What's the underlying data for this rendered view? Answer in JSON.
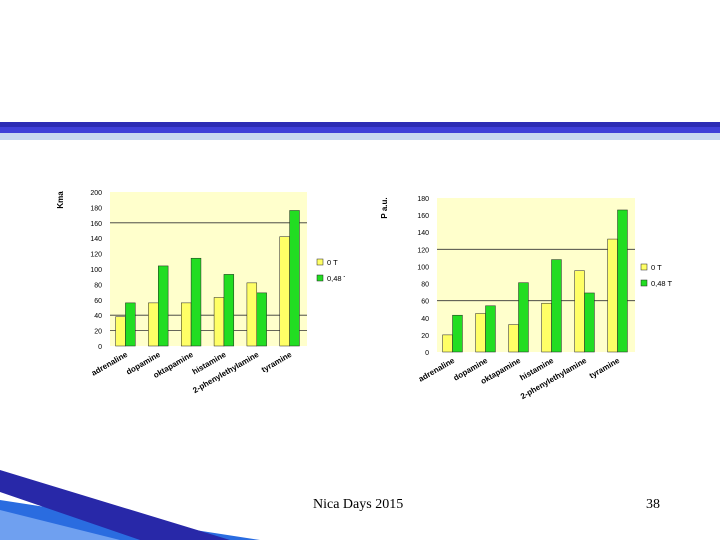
{
  "footer": {
    "left_text": "Nica Days 2015",
    "page_number": "38"
  },
  "colors": {
    "plot_bg": "#FFFFCC",
    "series_0T": "#FFFF66",
    "series_048T": "#22DD22",
    "stroke": "#222222",
    "band_dark": "#2C2CB4",
    "band_mid": "#3F3FD8",
    "band_light": "#C8D8F0",
    "corner_blue": "#2A6CE0"
  },
  "chart_data": [
    {
      "type": "bar",
      "ylabel": "Kma",
      "ylim": [
        0,
        200
      ],
      "yticks": [
        0,
        20,
        40,
        60,
        80,
        100,
        120,
        140,
        160,
        180,
        200
      ],
      "reference_lines": [
        160,
        40,
        20
      ],
      "categories": [
        "adrenaline",
        "dopamine",
        "oktapamine",
        "histamine",
        "2-phenylethylamine",
        "tyramine"
      ],
      "series": [
        {
          "name": "0 T",
          "values": [
            38,
            56,
            56,
            63,
            82,
            142
          ]
        },
        {
          "name": "0,48 T",
          "values": [
            56,
            104,
            114,
            93,
            69,
            176
          ]
        }
      ]
    },
    {
      "type": "bar",
      "ylabel": "P a.u.",
      "ylim": [
        0,
        180
      ],
      "yticks": [
        0,
        20,
        40,
        60,
        80,
        100,
        120,
        140,
        160,
        180
      ],
      "reference_lines": [
        120,
        60
      ],
      "categories": [
        "adrenaline",
        "dopamine",
        "oktapamine",
        "histamine",
        "2-phenylethylamine",
        "tyramine"
      ],
      "series": [
        {
          "name": "0 T",
          "values": [
            20,
            45,
            32,
            57,
            95,
            132
          ]
        },
        {
          "name": "0,48 T",
          "values": [
            43,
            54,
            81,
            108,
            69,
            166
          ]
        }
      ]
    }
  ]
}
